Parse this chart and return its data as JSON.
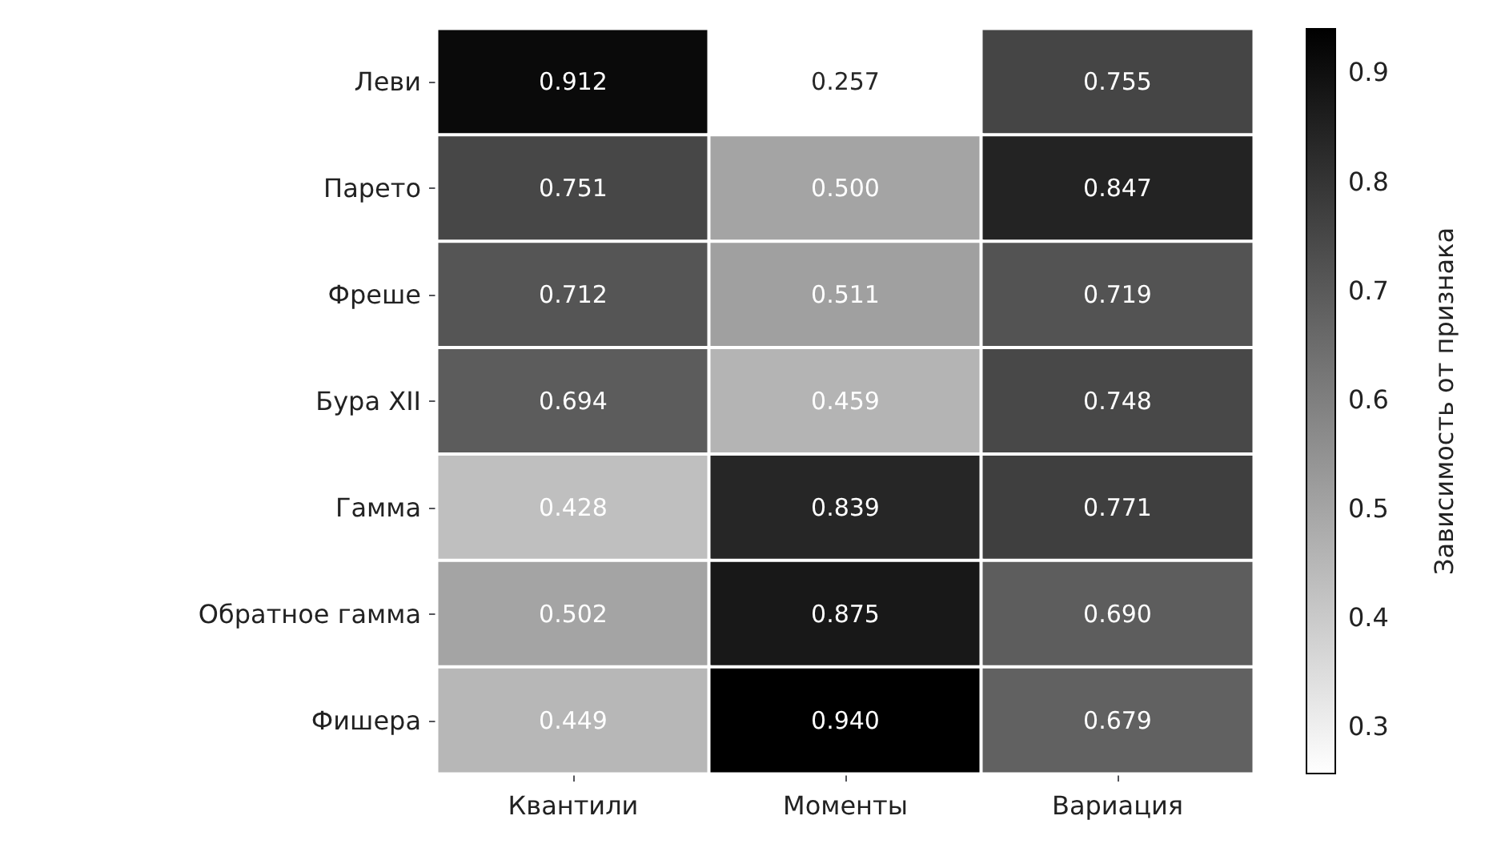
{
  "chart_data": {
    "type": "heatmap",
    "categories": [
      "Квантили",
      "Моменты",
      "Вариация"
    ],
    "y_categories": [
      "Леви",
      "Парето",
      "Фреше",
      "Бура XII",
      "Гамма",
      "Обратное гамма",
      "Фишера"
    ],
    "cells": [
      [
        0.912,
        0.257,
        0.755
      ],
      [
        0.751,
        0.5,
        0.847
      ],
      [
        0.712,
        0.511,
        0.719
      ],
      [
        0.694,
        0.459,
        0.748
      ],
      [
        0.428,
        0.839,
        0.771
      ],
      [
        0.502,
        0.875,
        0.69
      ],
      [
        0.449,
        0.94,
        0.679
      ]
    ],
    "cell_labels": [
      [
        "0.912",
        "0.257",
        "0.755"
      ],
      [
        "0.751",
        "0.500",
        "0.847"
      ],
      [
        "0.712",
        "0.511",
        "0.719"
      ],
      [
        "0.694",
        "0.459",
        "0.748"
      ],
      [
        "0.428",
        "0.839",
        "0.771"
      ],
      [
        "0.502",
        "0.875",
        "0.690"
      ],
      [
        "0.449",
        "0.940",
        "0.679"
      ]
    ],
    "clabel": "Зависимость от признака",
    "clim": [
      0.257,
      0.94
    ],
    "cticks": [
      0.3,
      0.4,
      0.5,
      0.6,
      0.7,
      0.8,
      0.9
    ]
  }
}
